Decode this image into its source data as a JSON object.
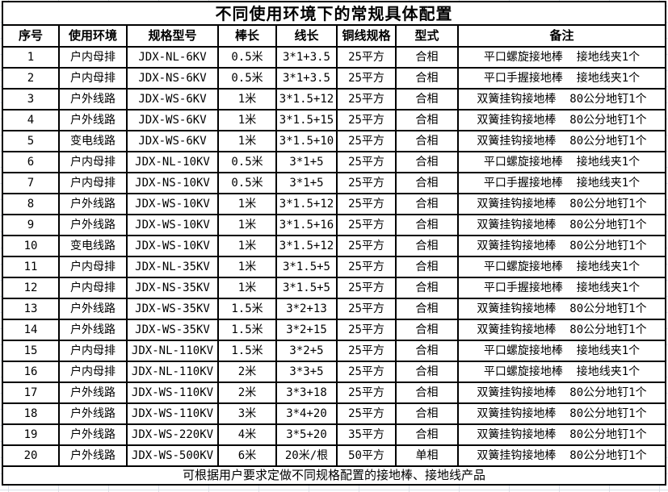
{
  "title": "不同使用环境下的常规具体配置",
  "columns": [
    "序号",
    "使用环境",
    "规格型号",
    "棒长",
    "线长",
    "铜线规格",
    "型式",
    "备注"
  ],
  "rows": [
    [
      "1",
      "户内母排",
      "JDX-NL-6KV",
      "0.5米",
      "3*1+3.5",
      "25平方",
      "合相",
      "平口螺旋接地棒  接地线夹1个"
    ],
    [
      "2",
      "户内母排",
      "JDX-NS-6KV",
      "0.5米",
      "3*1+3.5",
      "25平方",
      "合相",
      "平口手握接地棒  接地线夹1个"
    ],
    [
      "3",
      "户外线路",
      "JDX-WS-6KV",
      "1米",
      "3*1.5+12",
      "25平方",
      "合相",
      "双簧挂钩接地棒  80公分地钉1个"
    ],
    [
      "4",
      "户外线路",
      "JDX-WS-6KV",
      "1米",
      "3*1.5+15",
      "25平方",
      "合相",
      "双簧挂钩接地棒  80公分地钉1个"
    ],
    [
      "5",
      "变电线路",
      "JDX-WS-6KV",
      "1米",
      "3*1.5+10",
      "25平方",
      "合相",
      "双簧挂钩接地棒  80公分地钉1个"
    ],
    [
      "6",
      "户内母排",
      "JDX-NL-10KV",
      "0.5米",
      "3*1+5",
      "25平方",
      "合相",
      "平口螺旋接地棒  接地线夹1个"
    ],
    [
      "7",
      "户内母排",
      "JDX-NS-10KV",
      "0.5米",
      "3*1+5",
      "25平方",
      "合相",
      "平口手握接地棒  接地线夹1个"
    ],
    [
      "8",
      "户外线路",
      "JDX-WS-10KV",
      "1米",
      "3*1.5+12",
      "25平方",
      "合相",
      "双簧挂钩接地棒  80公分地钉1个"
    ],
    [
      "9",
      "户外线路",
      "JDX-WS-10KV",
      "1米",
      "3*1.5+16",
      "25平方",
      "合相",
      "双簧挂钩接地棒  80公分地钉1个"
    ],
    [
      "10",
      "变电线路",
      "JDX-WS-10KV",
      "1米",
      "3*1.5+12",
      "25平方",
      "合相",
      "双簧挂钩接地棒  80公分地钉1个"
    ],
    [
      "11",
      "户内母排",
      "JDX-NL-35KV",
      "1米",
      "3*1.5+5",
      "25平方",
      "合相",
      "平口螺旋接地棒  接地线夹1个"
    ],
    [
      "12",
      "户内母排",
      "JDX-NS-35KV",
      "1米",
      "3*1.5+5",
      "25平方",
      "合相",
      "平口手握接地棒  接地线夹1个"
    ],
    [
      "13",
      "户外线路",
      "JDX-WS-35KV",
      "1.5米",
      "3*2+13",
      "25平方",
      "合相",
      "双簧挂钩接地棒  80公分地钉1个"
    ],
    [
      "14",
      "户外线路",
      "JDX-WS-35KV",
      "1.5米",
      "3*2+15",
      "25平方",
      "合相",
      "双簧挂钩接地棒  80公分地钉1个"
    ],
    [
      "15",
      "户内母排",
      "JDX-NL-110KV",
      "1.5米",
      "3*2+5",
      "25平方",
      "合相",
      "平口螺旋接地棒  接地线夹1个"
    ],
    [
      "16",
      "户内母排",
      "JDX-NL-110KV",
      "2米",
      "3*3+5",
      "25平方",
      "合相",
      "平口螺旋接地棒  接地线夹1个"
    ],
    [
      "17",
      "户外线路",
      "JDX-WS-110KV",
      "2米",
      "3*3+18",
      "25平方",
      "合相",
      "双簧挂钩接地棒  80公分地钉1个"
    ],
    [
      "18",
      "户外线路",
      "JDX-WS-110KV",
      "3米",
      "3*4+20",
      "25平方",
      "合相",
      "双簧挂钩接地棒  80公分地钉1个"
    ],
    [
      "19",
      "户外线路",
      "JDX-WS-220KV",
      "4米",
      "3*5+20",
      "35平方",
      "合相",
      "双簧挂钩接地棒  80公分地钉1个"
    ],
    [
      "20",
      "户外线路",
      "JDX-WS-500KV",
      "6米",
      "20米/根",
      "50平方",
      "单相",
      "双簧挂钩接地棒  80公分地钉1个"
    ]
  ],
  "footer": "可根据用户要求定做不同规格配置的接地棒、接地线产品",
  "colors": {
    "border": "#000000",
    "text": "#000000",
    "background": "#ffffff",
    "gridline": "#dbe1ea"
  }
}
